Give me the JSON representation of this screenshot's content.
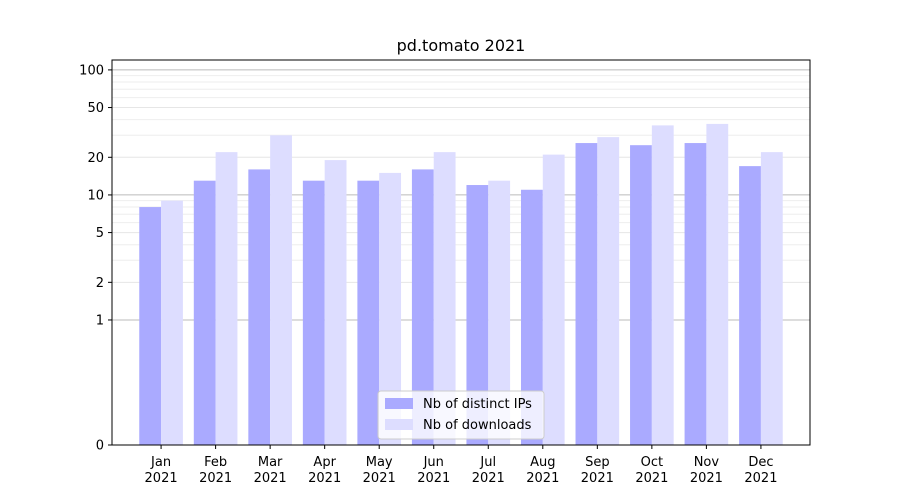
{
  "chart_data": {
    "type": "bar",
    "title": "pd.tomato 2021",
    "xlabel": "",
    "ylabel": "",
    "yscale": "symlog",
    "ylim": [
      0,
      120
    ],
    "yticks": [
      0,
      1,
      2,
      5,
      10,
      20,
      50,
      100
    ],
    "ytick_labels": [
      "0",
      "1",
      "2",
      "5",
      "10",
      "20",
      "50",
      "100"
    ],
    "categories": [
      {
        "month": "Jan",
        "year": "2021"
      },
      {
        "month": "Feb",
        "year": "2021"
      },
      {
        "month": "Mar",
        "year": "2021"
      },
      {
        "month": "Apr",
        "year": "2021"
      },
      {
        "month": "May",
        "year": "2021"
      },
      {
        "month": "Jun",
        "year": "2021"
      },
      {
        "month": "Jul",
        "year": "2021"
      },
      {
        "month": "Aug",
        "year": "2021"
      },
      {
        "month": "Sep",
        "year": "2021"
      },
      {
        "month": "Oct",
        "year": "2021"
      },
      {
        "month": "Nov",
        "year": "2021"
      },
      {
        "month": "Dec",
        "year": "2021"
      }
    ],
    "series": [
      {
        "name": "Nb of distinct IPs",
        "color": "#aaaaff",
        "values": [
          8,
          13,
          16,
          13,
          13,
          16,
          12,
          11,
          26,
          25,
          26,
          17
        ]
      },
      {
        "name": "Nb of downloads",
        "color": "#ddddff",
        "values": [
          9,
          22,
          30,
          19,
          15,
          22,
          13,
          21,
          29,
          36,
          37,
          22
        ]
      }
    ],
    "grid": true,
    "legend_position": "bottom-center"
  }
}
